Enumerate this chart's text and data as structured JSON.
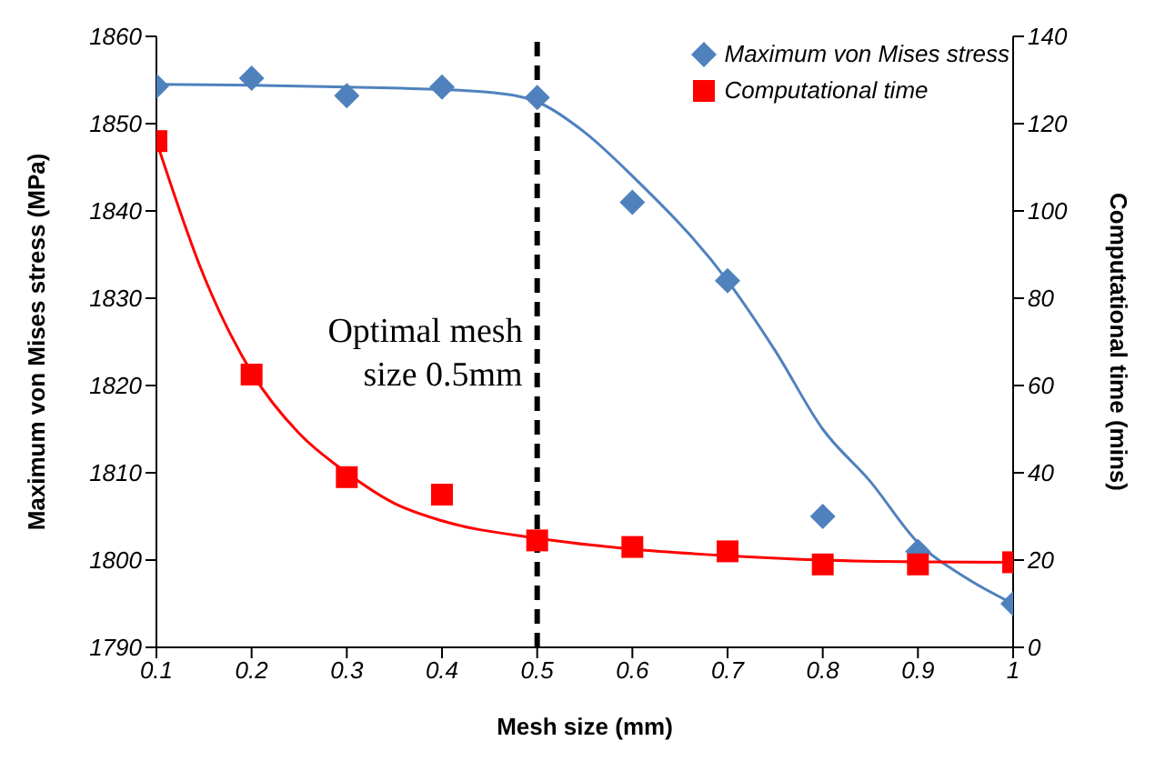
{
  "chart_data": {
    "type": "scatter",
    "xlabel": "Mesh size (mm)",
    "ylabel": "Maximum von Mises stress (MPa)",
    "y2label": "Computational time (mins)",
    "xlim": [
      0.1,
      1
    ],
    "xticks": [
      0.1,
      0.2,
      0.3,
      0.4,
      0.5,
      0.6,
      0.7,
      0.8,
      0.9,
      1
    ],
    "ylim": [
      1790,
      1860
    ],
    "yticks": [
      1790,
      1800,
      1810,
      1820,
      1830,
      1840,
      1850,
      1860
    ],
    "y2lim": [
      0,
      140
    ],
    "y2ticks": [
      0,
      20,
      40,
      60,
      80,
      100,
      120,
      140
    ],
    "grid": false,
    "legend": "top right",
    "ref_lines": [
      {
        "axis": "x",
        "value": 0.5,
        "label": "Optimal mesh size 0.5mm",
        "color": "#000000",
        "line_style": "dashed"
      }
    ],
    "series": [
      {
        "name": "Maximum von Mises stress",
        "marker": "diamond",
        "color": "#4f81bd",
        "x": [
          0.1,
          0.2,
          0.3,
          0.4,
          0.5,
          0.6,
          0.7,
          0.8,
          0.9,
          1
        ],
        "values": [
          1854.3,
          1855.2,
          1853.2,
          1854.2,
          1853,
          1841,
          1832,
          1805,
          1801,
          1795
        ]
      },
      {
        "name": "Computational time",
        "marker": "square",
        "axis": "y2",
        "color": "#ff0000",
        "x": [
          0.1,
          0.2,
          0.3,
          0.4,
          0.5,
          0.6,
          0.7,
          0.8,
          0.9,
          1
        ],
        "values": [
          116,
          62.5,
          39,
          35,
          24.5,
          23,
          22,
          19,
          19,
          19.5
        ]
      },
      {
        "type": "line",
        "marker": "none",
        "color": "#4f81bd",
        "x": [
          0.1,
          0.2,
          0.3,
          0.4,
          0.45,
          0.5,
          0.55,
          0.6,
          0.7,
          0.75,
          0.8,
          0.85,
          0.9,
          0.95,
          1
        ],
        "values": [
          1854.5,
          1854.4,
          1854.2,
          1853.9,
          1853.6,
          1852.5,
          1849,
          1844,
          1832,
          1824,
          1815,
          1809,
          1802,
          1798,
          1795
        ]
      },
      {
        "type": "line",
        "marker": "none",
        "axis": "y2",
        "color": "#ff0000",
        "x": [
          0.1,
          0.15,
          0.2,
          0.25,
          0.3,
          0.35,
          0.4,
          0.5,
          0.6,
          0.7,
          0.8,
          0.9,
          1
        ],
        "values": [
          116,
          85,
          63,
          49,
          40,
          33,
          29,
          25,
          22.5,
          21,
          20,
          19.6,
          19.5
        ]
      }
    ]
  }
}
